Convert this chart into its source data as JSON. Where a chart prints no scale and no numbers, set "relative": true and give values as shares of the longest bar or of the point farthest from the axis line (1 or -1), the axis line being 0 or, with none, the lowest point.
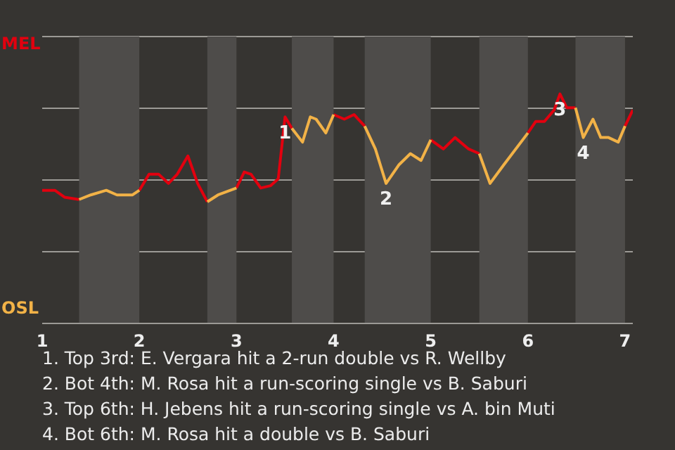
{
  "chart_data": {
    "type": "line",
    "relative": true,
    "x": [
      1,
      1.13,
      1.23,
      1.38,
      1.5,
      1.66,
      1.77,
      1.93,
      2,
      2.1,
      2.2,
      2.3,
      2.39,
      2.5,
      2.6,
      2.7,
      2.81,
      3,
      3.08,
      3.15,
      3.25,
      3.35,
      3.43,
      3.5,
      3.57,
      3.68,
      3.76,
      3.82,
      3.92,
      4,
      4.11,
      4.21,
      4.32,
      4.43,
      4.54,
      4.67,
      4.79,
      4.9,
      5,
      5.13,
      5.25,
      5.39,
      5.5,
      5.61,
      5.75,
      6,
      6.08,
      6.17,
      6.27,
      6.33,
      6.4,
      6.49,
      6.57,
      6.67,
      6.75,
      6.83,
      6.93,
      7,
      7.08
    ],
    "series": [
      {
        "color": "#e2000f",
        "values": [
          0.58,
          0.58,
          0.55,
          0.54,
          null,
          null,
          null,
          null,
          0.58,
          0.65,
          0.65,
          0.61,
          0.65,
          0.73,
          0.61,
          0.53,
          null,
          0.59,
          0.66,
          0.65,
          0.59,
          0.6,
          0.63,
          0.9,
          0.85,
          null,
          null,
          null,
          null,
          0.91,
          0.89,
          0.91,
          0.86,
          null,
          null,
          null,
          null,
          null,
          0.8,
          0.76,
          0.81,
          0.76,
          0.74,
          null,
          null,
          0.83,
          0.88,
          0.88,
          0.93,
          1,
          0.94,
          0.94,
          null,
          null,
          null,
          null,
          null,
          0.86,
          0.93
        ]
      },
      {
        "color": "#f2b247",
        "values": [
          null,
          null,
          null,
          0.54,
          0.56,
          0.58,
          0.56,
          0.56,
          0.58,
          null,
          null,
          null,
          null,
          null,
          null,
          0.53,
          0.56,
          0.59,
          null,
          null,
          null,
          null,
          null,
          null,
          0.85,
          0.79,
          0.9,
          0.89,
          0.83,
          0.91,
          null,
          null,
          0.86,
          0.76,
          0.61,
          0.69,
          0.74,
          0.71,
          0.8,
          null,
          null,
          null,
          0.74,
          0.61,
          0.69,
          0.83,
          null,
          null,
          null,
          null,
          null,
          0.94,
          0.81,
          0.89,
          0.81,
          0.81,
          0.79,
          0.86,
          null
        ]
      }
    ],
    "xlim": [
      1,
      7.08
    ],
    "xticks": [
      1,
      2,
      3,
      4,
      5,
      6,
      7
    ],
    "grid": "y",
    "marker": "none",
    "line_style": "solid",
    "bands": [
      {
        "axis": "x",
        "from": 1.38,
        "to": 2,
        "color": "#4e4c4a"
      },
      {
        "axis": "x",
        "from": 2.7,
        "to": 3,
        "color": "#4e4c4a"
      },
      {
        "axis": "x",
        "from": 3.57,
        "to": 4,
        "color": "#4e4c4a"
      },
      {
        "axis": "x",
        "from": 4.32,
        "to": 5,
        "color": "#4e4c4a"
      },
      {
        "axis": "x",
        "from": 5.5,
        "to": 6,
        "color": "#4e4c4a"
      },
      {
        "axis": "x",
        "from": 6.49,
        "to": 7,
        "color": "#4e4c4a"
      }
    ],
    "annotations": [
      "MEL",
      "OSL",
      {
        "text": "1",
        "x": 3.5,
        "y": 0.9
      },
      {
        "text": "2",
        "x": 4.54,
        "y": 0.61
      },
      {
        "text": "3",
        "x": 6.33,
        "y": 1
      },
      {
        "text": "4",
        "x": 6.57,
        "y": 0.81
      },
      "1. Top 3rd: E. Vergara hit a 2-run double vs R. Wellby",
      "2. Bot 4th: M. Rosa hit a run-scoring single vs B. Saburi",
      "3. Top 6th: H. Jebens hit a run-scoring single vs A. bin Muti",
      "4. Bot 6th: M. Rosa hit a double vs B. Saburi"
    ]
  }
}
